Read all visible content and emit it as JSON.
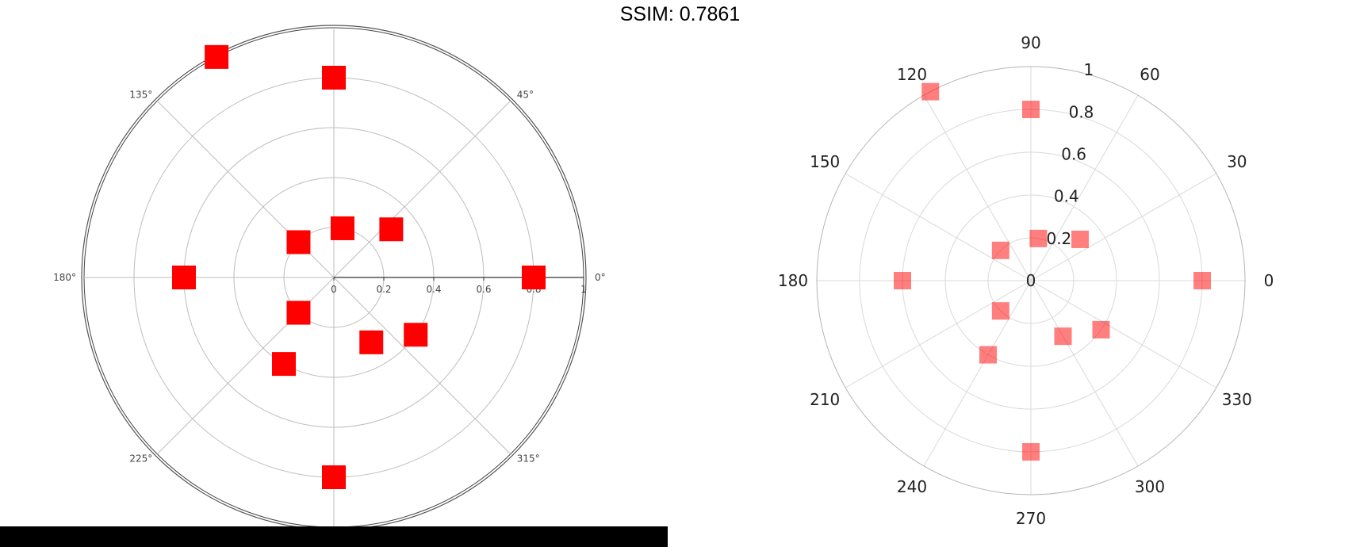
{
  "title": "SSIM: 0.7861",
  "colors": {
    "marker_left": "#ff0000",
    "marker_right": "#ff0000",
    "grid": "#bdbdbd",
    "grid_right": "#d9d9d9",
    "axis": "#000000",
    "bar": "#000000"
  },
  "chart_data": [
    {
      "type": "scatter",
      "polar": true,
      "marker": "square",
      "color": "#ff0000",
      "opacity": 1.0,
      "radial_range": [
        0,
        1
      ],
      "radial_ticks": [
        0,
        0.2,
        0.4,
        0.6,
        0.8,
        1
      ],
      "radial_tick_labels": [
        "0",
        "0.2",
        "0.4",
        "0.6",
        "0.8",
        "1"
      ],
      "angular_ticks": [
        0,
        45,
        135,
        180,
        225,
        315
      ],
      "angular_tick_labels": [
        "0°",
        "45°",
        "135°",
        "180°",
        "225°",
        "315°"
      ],
      "grid": true,
      "points": [
        {
          "r": 0.8,
          "theta": 0
        },
        {
          "r": 0.3,
          "theta": 40
        },
        {
          "r": 0.8,
          "theta": 90
        },
        {
          "r": 1.0,
          "theta": 118
        },
        {
          "r": 0.2,
          "theta": 80
        },
        {
          "r": 0.2,
          "theta": 135
        },
        {
          "r": 0.6,
          "theta": 180
        },
        {
          "r": 0.2,
          "theta": 225
        },
        {
          "r": 0.4,
          "theta": 240
        },
        {
          "r": 0.8,
          "theta": 270
        },
        {
          "r": 0.3,
          "theta": 300
        },
        {
          "r": 0.4,
          "theta": 325
        }
      ]
    },
    {
      "type": "scatter",
      "polar": true,
      "marker": "square",
      "color": "#ff0000",
      "opacity": 0.5,
      "radial_range": [
        0,
        1
      ],
      "radial_ticks": [
        0,
        0.2,
        0.4,
        0.6,
        0.8,
        1
      ],
      "radial_tick_labels": [
        "0",
        "0.2",
        "0.4",
        "0.6",
        "0.8",
        "1"
      ],
      "angular_ticks": [
        0,
        30,
        60,
        90,
        120,
        150,
        180,
        210,
        240,
        270,
        300,
        330
      ],
      "angular_tick_labels": [
        "0",
        "30",
        "60",
        "90",
        "120",
        "150",
        "180",
        "210",
        "240",
        "270",
        "300",
        "330"
      ],
      "grid": true,
      "points": [
        {
          "r": 0.8,
          "theta": 0
        },
        {
          "r": 0.3,
          "theta": 40
        },
        {
          "r": 0.8,
          "theta": 90
        },
        {
          "r": 1.0,
          "theta": 118
        },
        {
          "r": 0.2,
          "theta": 80
        },
        {
          "r": 0.2,
          "theta": 135
        },
        {
          "r": 0.6,
          "theta": 180
        },
        {
          "r": 0.2,
          "theta": 225
        },
        {
          "r": 0.4,
          "theta": 240
        },
        {
          "r": 0.8,
          "theta": 270
        },
        {
          "r": 0.3,
          "theta": 300
        },
        {
          "r": 0.4,
          "theta": 325
        }
      ]
    }
  ]
}
